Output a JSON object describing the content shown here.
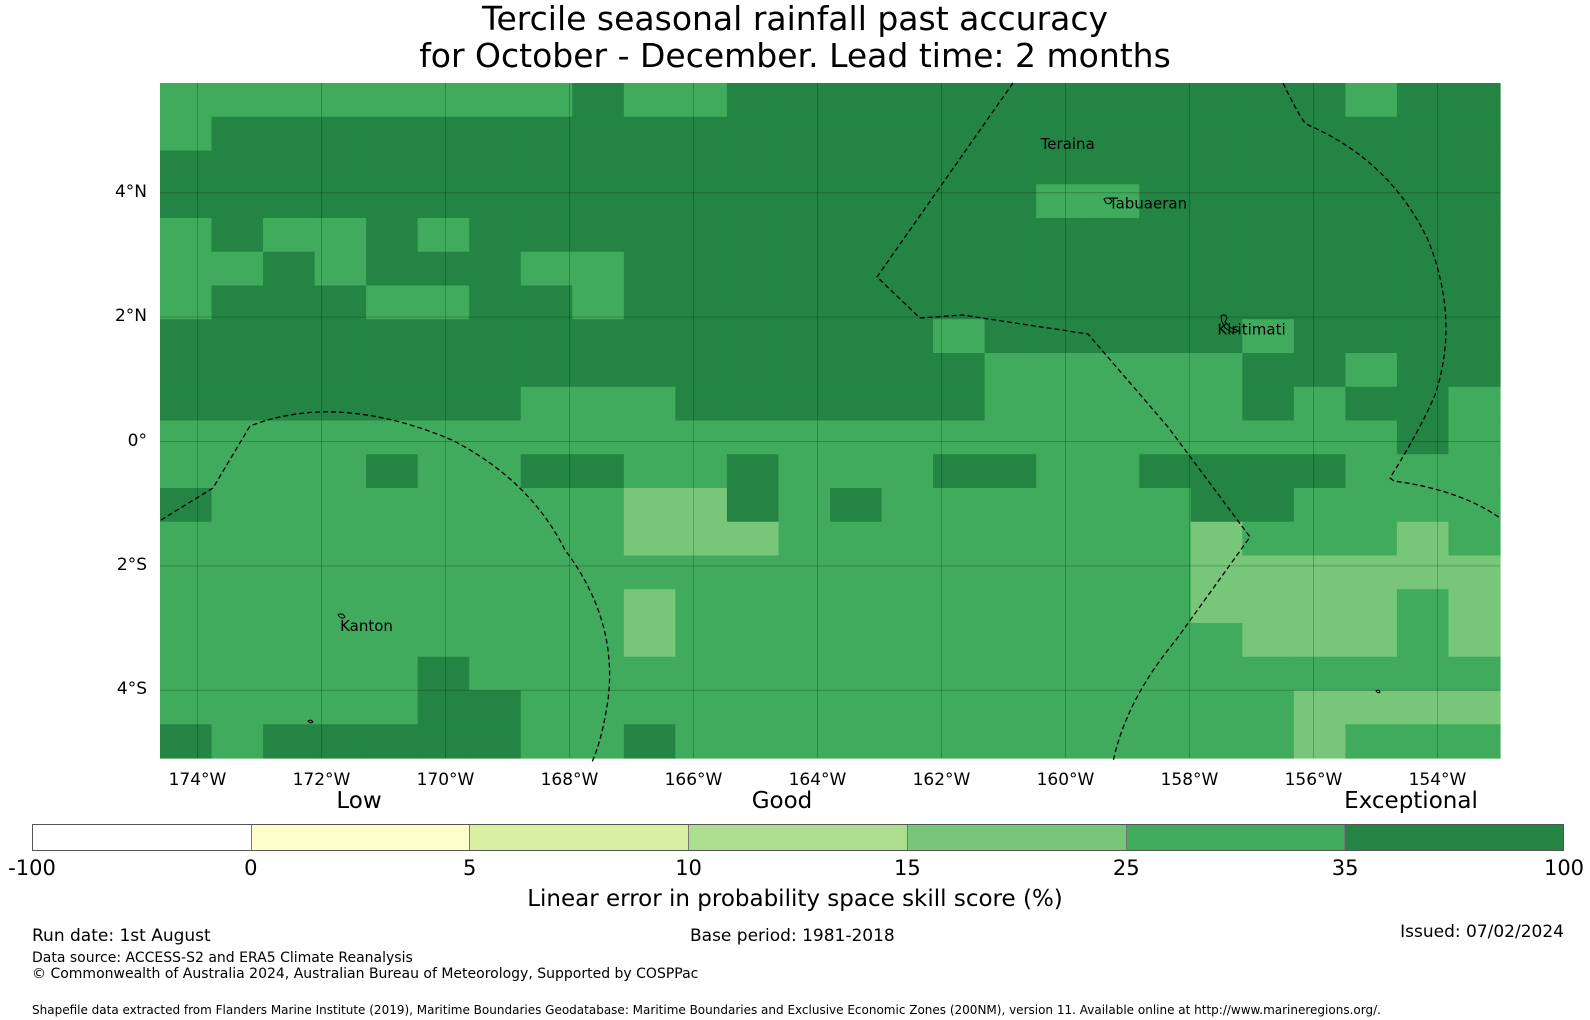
{
  "title_line1": "Tercile seasonal rainfall past accuracy",
  "title_line2": "for October - December. Lead time: 2 months",
  "map": {
    "lon_range": [
      -174.75,
      -153.0
    ],
    "lat_range": [
      -5.2,
      5.8
    ],
    "lat_ticks": [
      {
        "value": 4,
        "label": "4°N"
      },
      {
        "value": 2,
        "label": "2°N"
      },
      {
        "value": 0,
        "label": "0°"
      },
      {
        "value": -2,
        "label": "2°S"
      },
      {
        "value": -4,
        "label": "4°S"
      }
    ],
    "lon_ticks": [
      {
        "value": -174,
        "label": "174°W"
      },
      {
        "value": -172,
        "label": "172°W"
      },
      {
        "value": -170,
        "label": "170°W"
      },
      {
        "value": -168,
        "label": "168°W"
      },
      {
        "value": -166,
        "label": "166°W"
      },
      {
        "value": -164,
        "label": "164°W"
      },
      {
        "value": -162,
        "label": "162°W"
      },
      {
        "value": -160,
        "label": "160°W"
      },
      {
        "value": -158,
        "label": "158°W"
      },
      {
        "value": -156,
        "label": "156°W"
      },
      {
        "value": -154,
        "label": "154°W"
      }
    ],
    "places": [
      {
        "name": "Teraina",
        "lon": -160.4,
        "lat": 4.7
      },
      {
        "name": "Tabuaeran",
        "lon": -159.3,
        "lat": 3.75
      },
      {
        "name": "Kiritimati",
        "lon": -157.55,
        "lat": 1.72
      },
      {
        "name": "Kanton",
        "lon": -171.7,
        "lat": -3.05
      }
    ],
    "colors": {
      "exceptional": "#238443",
      "high_good": "#41ab5d",
      "good": "#78c679"
    }
  },
  "colorbar": {
    "band_labels": [
      "Low",
      "Good",
      "Exceptional"
    ],
    "tick_labels": [
      "-100",
      "0",
      "5",
      "10",
      "15",
      "25",
      "35",
      "100"
    ],
    "colors": [
      "#ffffff",
      "#ffffcc",
      "#d9f0a3",
      "#addd8e",
      "#78c679",
      "#41ab5d",
      "#238443"
    ],
    "title": "Linear error in probability space skill score (%)"
  },
  "footer": {
    "run_date": "Run date: 1st August",
    "base_period": "Base period: 1981-2018",
    "issued": "Issued: 07/02/2024",
    "data_source": "Data source: ACCESS-S2 and ERA5 Climate Reanalysis",
    "copyright": "© Commonwealth of Australia 2024, Australian Bureau of Meteorology, Supported by COSPPac",
    "shapefile": "Shapefile data extracted from Flanders Marine Institute (2019), Maritime Boundaries Geodatabase: Maritime Boundaries and Exclusive Economic Zones (200NM), version 11. Available online at http://www.marineregions.org/."
  }
}
